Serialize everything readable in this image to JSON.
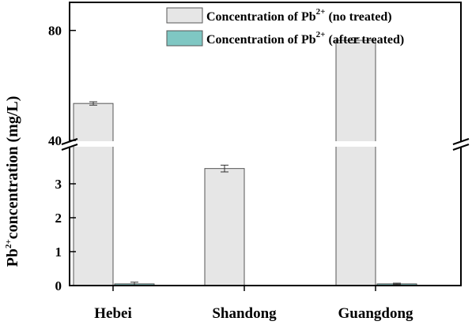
{
  "chart_data": {
    "type": "bar",
    "categories": [
      "Hebei",
      "Shandong",
      "Guangdong"
    ],
    "series": [
      {
        "name": "Concentration of Pb2+ (no treated)",
        "name_parts": {
          "pre": "Concentration of Pb",
          "sup": "2+",
          "post": " (no treated)"
        },
        "values": [
          54.0,
          3.45,
          76.5
        ],
        "errors": [
          0.6,
          0.1,
          0.9
        ],
        "color": "#e6e6e6",
        "stroke": "#555555"
      },
      {
        "name": "Concentration of Pb2+ (after treated)",
        "name_parts": {
          "pre": "Concentration of Pb",
          "sup": "2+",
          "post": " (after treated)"
        },
        "values": [
          0.05,
          null,
          0.05
        ],
        "errors": [
          0.05,
          null,
          0.02
        ],
        "color": "#7fc7c3",
        "stroke": "#555555"
      }
    ],
    "ylabel_parts": {
      "pre": "Pb",
      "sup": "2+",
      "post": "concentration (mg/L)"
    },
    "axis_break": {
      "lower_range": [
        0,
        4
      ],
      "upper_range": [
        40,
        90
      ]
    },
    "lower_ticks": [
      0,
      1,
      2,
      3
    ],
    "upper_ticks": [
      40,
      80
    ],
    "legend_position": "top-right",
    "grid": false
  }
}
